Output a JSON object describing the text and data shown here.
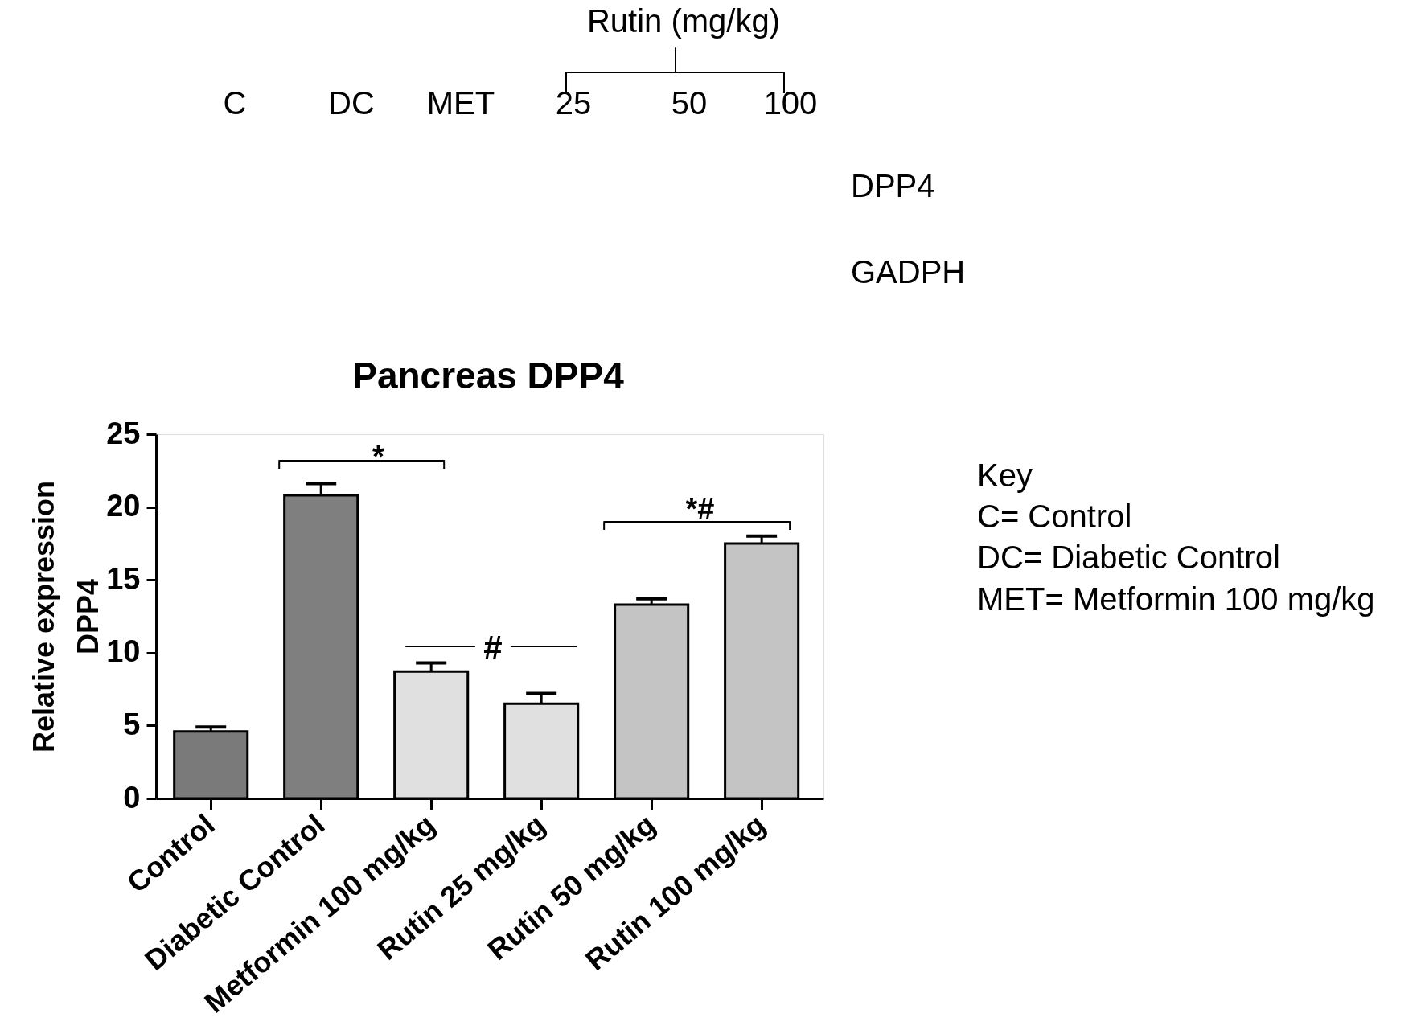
{
  "chart_data": {
    "type": "bar",
    "title": "Pancreas DPP4",
    "ylabel": "Relative expression\nDPP4",
    "categories": [
      "Control",
      "Diabetic Control",
      "Metformin 100 mg/kg",
      "Rutin 25 mg/kg",
      "Rutin 50 mg/kg",
      "Rutin 100 mg/kg"
    ],
    "values": [
      4.6,
      20.8,
      8.7,
      6.5,
      13.3,
      17.5
    ],
    "colors": [
      "#7a7a7a",
      "#7f7f7f",
      "#e0e0e0",
      "#e0e0e0",
      "#c4c4c4",
      "#c4c4c4"
    ],
    "errors": [
      [
        4.6,
        4.9
      ],
      [
        20.8,
        21.6
      ],
      [
        8.7,
        9.3
      ],
      [
        6.5,
        7.2
      ],
      [
        13.3,
        13.7
      ],
      [
        17.5,
        18.0
      ]
    ],
    "ylim": [
      0,
      25
    ],
    "yticks": [
      0,
      5,
      10,
      15,
      20,
      25
    ],
    "grid": false,
    "annotations": [
      "*",
      "#",
      "*#",
      "Rutin (mg/kg)",
      "C",
      "DC",
      "MET",
      "25",
      "50",
      "100",
      "DPP4",
      "GADPH",
      "Key",
      "C= Control",
      "DC= Diabetic Control",
      "MET= Metformin 100 mg/kg"
    ]
  }
}
